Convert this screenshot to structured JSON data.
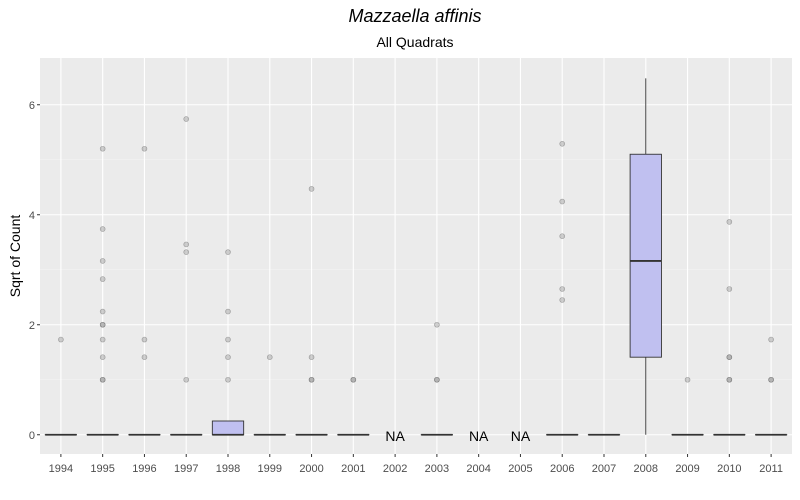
{
  "chart_data": {
    "type": "box",
    "title": "Mazzaella affinis",
    "subtitle": "All Quadrats",
    "xlabel": "",
    "ylabel": "Sqrt of Count",
    "ylim": [
      -0.35,
      6.85
    ],
    "yticks": [
      0,
      2,
      4,
      6
    ],
    "grid": true,
    "colors": {
      "panel": "#ebebeb",
      "grid_major": "#ffffff",
      "box_fill": "#c0c0f0",
      "box_line": "#333333",
      "outlier": "#999999"
    },
    "categories": [
      "1994",
      "1995",
      "1996",
      "1997",
      "1998",
      "1999",
      "2000",
      "2001",
      "2002",
      "2003",
      "2004",
      "2005",
      "2006",
      "2007",
      "2008",
      "2009",
      "2010",
      "2011"
    ],
    "boxes": [
      {
        "year": "1994",
        "min": 0,
        "q1": 0,
        "median": 0,
        "q3": 0,
        "max": 0,
        "outliers": [
          1.73
        ]
      },
      {
        "year": "1995",
        "min": 0,
        "q1": 0,
        "median": 0,
        "q3": 0,
        "max": 0,
        "outliers": [
          1,
          1,
          1.41,
          1.73,
          2,
          2,
          2.24,
          2.83,
          3.16,
          3.74,
          5.2
        ]
      },
      {
        "year": "1996",
        "min": 0,
        "q1": 0,
        "median": 0,
        "q3": 0,
        "max": 0,
        "outliers": [
          1.41,
          1.73,
          5.2
        ]
      },
      {
        "year": "1997",
        "min": 0,
        "q1": 0,
        "median": 0,
        "q3": 0,
        "max": 0,
        "outliers": [
          1,
          3.32,
          3.46,
          5.74
        ]
      },
      {
        "year": "1998",
        "min": 0,
        "q1": 0,
        "median": 0,
        "q3": 0.25,
        "max": 0.25,
        "outliers": [
          1,
          1.41,
          1.73,
          2.24,
          3.32
        ]
      },
      {
        "year": "1999",
        "min": 0,
        "q1": 0,
        "median": 0,
        "q3": 0,
        "max": 0,
        "outliers": [
          1.41
        ]
      },
      {
        "year": "2000",
        "min": 0,
        "q1": 0,
        "median": 0,
        "q3": 0,
        "max": 0,
        "outliers": [
          1,
          1,
          1.41,
          4.47
        ]
      },
      {
        "year": "2001",
        "min": 0,
        "q1": 0,
        "median": 0,
        "q3": 0,
        "max": 0,
        "outliers": [
          1,
          1
        ]
      },
      {
        "year": "2002",
        "na": true,
        "label": "NA"
      },
      {
        "year": "2003",
        "min": 0,
        "q1": 0,
        "median": 0,
        "q3": 0,
        "max": 0,
        "outliers": [
          1,
          1,
          2
        ]
      },
      {
        "year": "2004",
        "na": true,
        "label": "NA"
      },
      {
        "year": "2005",
        "na": true,
        "label": "NA"
      },
      {
        "year": "2006",
        "min": 0,
        "q1": 0,
        "median": 0,
        "q3": 0,
        "max": 0,
        "outliers": [
          2.45,
          2.65,
          3.61,
          4.24,
          5.29
        ]
      },
      {
        "year": "2007",
        "min": 0,
        "q1": 0,
        "median": 0,
        "q3": 0,
        "max": 0,
        "outliers": []
      },
      {
        "year": "2008",
        "min": 0,
        "q1": 1.41,
        "median": 3.16,
        "q3": 5.1,
        "max": 6.48,
        "outliers": []
      },
      {
        "year": "2009",
        "min": 0,
        "q1": 0,
        "median": 0,
        "q3": 0,
        "max": 0,
        "outliers": [
          1
        ]
      },
      {
        "year": "2010",
        "min": 0,
        "q1": 0,
        "median": 0,
        "q3": 0,
        "max": 0,
        "outliers": [
          1,
          1,
          1.41,
          1.41,
          2.65,
          3.87
        ]
      },
      {
        "year": "2011",
        "min": 0,
        "q1": 0,
        "median": 0,
        "q3": 0,
        "max": 0,
        "outliers": [
          1,
          1,
          1.73
        ]
      }
    ]
  }
}
